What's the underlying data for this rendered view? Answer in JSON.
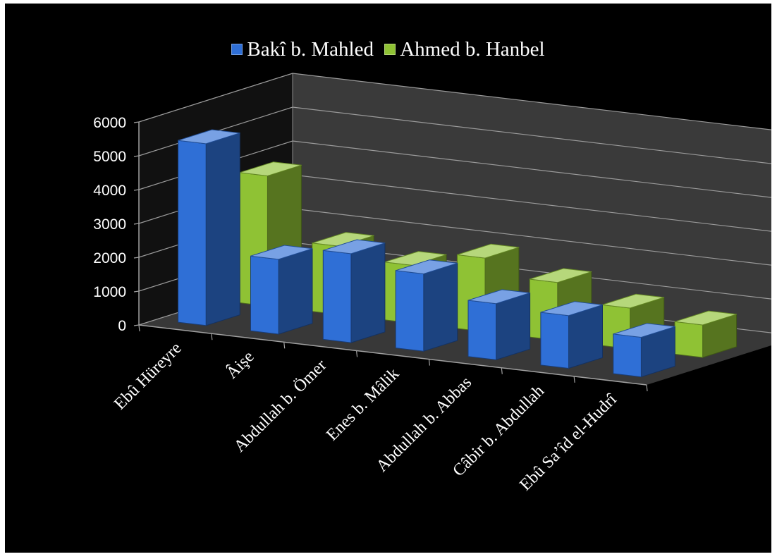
{
  "chart_data": {
    "type": "bar",
    "subtype": "3d-clustered-column",
    "title": "",
    "xlabel": "",
    "ylabel": "",
    "ylim": [
      0,
      6000
    ],
    "yticks": [
      0,
      1000,
      2000,
      3000,
      4000,
      5000,
      6000
    ],
    "grid": true,
    "legend_position": "top",
    "categories": [
      "Ebû Hüreyre",
      "Âişe",
      "Abdullah b. Ömer",
      "Enes b. Mâlik",
      "Abdullah b. Abbas",
      "Câbir b. Abdullah",
      "Ebû Sa’îd el-Hudrî"
    ],
    "series": [
      {
        "name": "Bakî b. Mahled",
        "color": "#2f6fd6",
        "values": [
          5374,
          2210,
          2630,
          2286,
          1660,
          1560,
          1170
        ]
      },
      {
        "name": "Ahmed b. Hanbel",
        "color": "#8fc234",
        "values": [
          3848,
          2019,
          1710,
          2178,
          1710,
          1206,
          960
        ]
      }
    ]
  }
}
